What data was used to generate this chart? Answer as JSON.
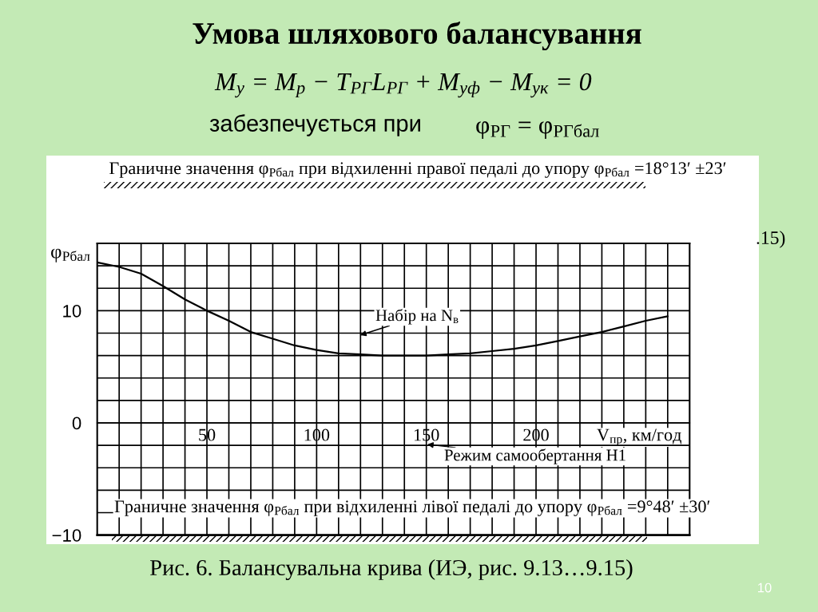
{
  "chart_data": {
    "type": "line",
    "title": "Умова шляхового балансування",
    "subtitle": "M$_{у}$ = M$_{р}$ − T$_{РГ}$L$_{РГ}$ + M$_{уф}$ − M$_{ук}$ = 0",
    "xlabel": "V$_{пр}$, км/год",
    "ylabel": "φ$_{Рбал}$",
    "annotations": [
      "забезпечується при",
      "φ$_{РГ}$ = φ$_{РГбал}$",
      "Граничне значення φ$_{Рбал}$ при відхиленні правої педалі до упору φ$_{Рбал}$ =18°13′ ±23′",
      "Набір на N$_{в}$",
      "Режим самообертання Н1",
      "Граничне значення φ$_{Рбал}$ при відхиленні лівої педалі до упору φ$_{Рбал}$ =9°48′ ±30′",
      ".15)",
      "Рис. 6. Балансувальна крива (ИЭ, рис. 9.13…9.15)",
      "10"
    ],
    "x": [
      0,
      10,
      20,
      30,
      40,
      50,
      60,
      70,
      80,
      90,
      100,
      110,
      120,
      130,
      140,
      150,
      160,
      170,
      180,
      190,
      200,
      210,
      220,
      230,
      240,
      250,
      260
    ],
    "series": [
      {
        "color": "#000000",
        "values": [
          14.3,
          13.9,
          13.3,
          12.2,
          11.0,
          10.0,
          9.1,
          8.1,
          7.5,
          6.9,
          6.5,
          6.2,
          6.1,
          6.0,
          6.0,
          6.0,
          6.1,
          6.2,
          6.4,
          6.6,
          6.9,
          7.3,
          7.7,
          8.1,
          8.6,
          9.1,
          9.5
        ]
      }
    ],
    "xlim": [
      0,
      270
    ],
    "ylim": [
      -10,
      16
    ],
    "xticks": [
      {
        "value": 10,
        "label": null
      },
      {
        "value": 20,
        "label": null
      },
      {
        "value": 30,
        "label": null
      },
      {
        "value": 40,
        "label": null
      },
      50,
      {
        "value": 60,
        "label": null
      },
      {
        "value": 70,
        "label": null
      },
      {
        "value": 80,
        "label": null
      },
      {
        "value": 90,
        "label": null
      },
      100,
      {
        "value": 110,
        "label": null
      },
      {
        "value": 120,
        "label": null
      },
      {
        "value": 130,
        "label": null
      },
      {
        "value": 140,
        "label": null
      },
      150,
      {
        "value": 160,
        "label": null
      },
      {
        "value": 170,
        "label": null
      },
      {
        "value": 180,
        "label": null
      },
      {
        "value": 190,
        "label": null
      },
      200,
      {
        "value": 210,
        "label": null
      },
      {
        "value": 220,
        "label": null
      },
      {
        "value": 230,
        "label": null
      },
      {
        "value": 240,
        "label": null
      },
      {
        "value": 250,
        "label": null
      },
      {
        "value": 260,
        "label": null
      }
    ],
    "yticks": [
      {
        "value": -10,
        "label": "−10"
      },
      {
        "value": -8,
        "label": null
      },
      {
        "value": -6,
        "label": null
      },
      {
        "value": -4,
        "label": null
      },
      {
        "value": -2,
        "label": null
      },
      0,
      {
        "value": 2,
        "label": null
      },
      {
        "value": 4,
        "label": null
      },
      {
        "value": 6,
        "label": null
      },
      {
        "value": 8,
        "label": null
      },
      10,
      {
        "value": 12,
        "label": null
      },
      {
        "value": 14,
        "label": null
      }
    ],
    "ref_lines": [
      {
        "axis": "y",
        "value": -10,
        "color": "#000000"
      }
    ],
    "grid": true
  }
}
